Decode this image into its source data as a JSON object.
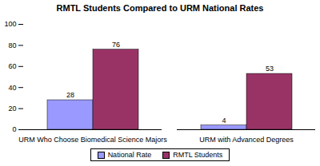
{
  "chart_data": {
    "type": "bar",
    "title": "RMTL Students Compared to URM National Rates",
    "categories": [
      "URM Who Choose Biomedical Science Majors",
      "URM with Advanced Degrees"
    ],
    "series": [
      {
        "name": "National Rate",
        "color": "#9999ff",
        "values": [
          28,
          4
        ]
      },
      {
        "name": "RMTL Students",
        "color": "#993366",
        "values": [
          76,
          53
        ]
      }
    ],
    "ylim": [
      0,
      100
    ],
    "yticks": [
      0,
      20,
      40,
      60,
      80,
      100
    ],
    "grid": false,
    "legend": "bottom",
    "data_labels": true
  }
}
